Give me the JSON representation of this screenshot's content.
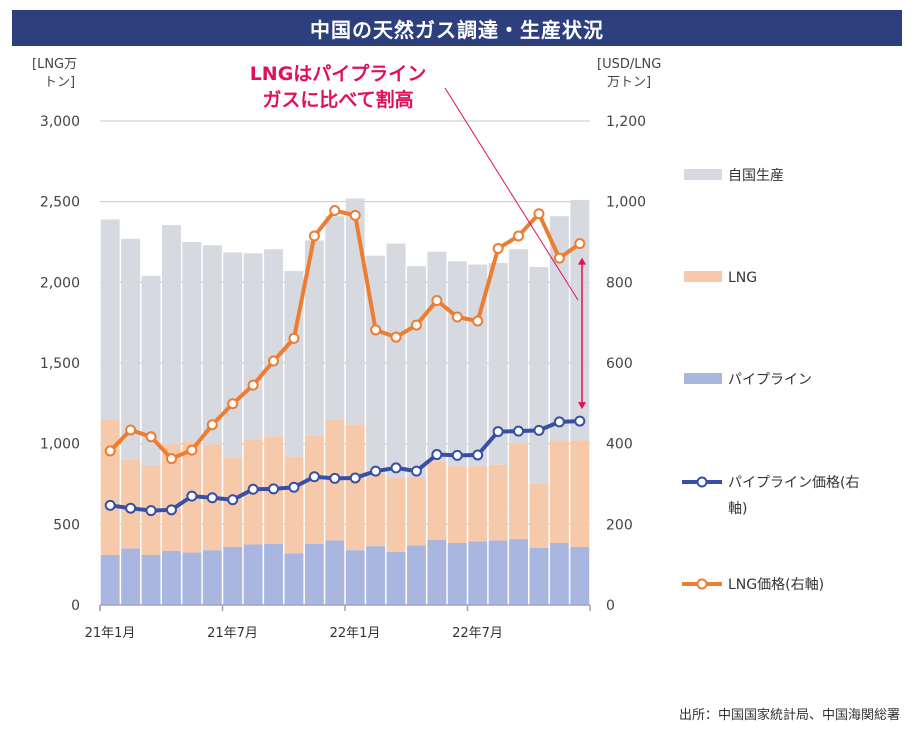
{
  "title": "中国の天然ガス調達・生産状況",
  "source": "出所：中国国家統計局、中国海関総署",
  "chart_data": {
    "type": "bar",
    "stacked": true,
    "left_axis": {
      "label_line1": "[LNG万",
      "label_line2": "トン]",
      "ylim": [
        0,
        3000
      ],
      "ticks": [
        "0",
        "500",
        "1,000",
        "1,500",
        "2,000",
        "2,500",
        "3,000"
      ],
      "tick_values": [
        0,
        500,
        1000,
        1500,
        2000,
        2500,
        3000
      ]
    },
    "right_axis": {
      "label_line1": "[USD/LNG",
      "label_line2": "万トン]",
      "ylim": [
        0,
        1200
      ],
      "ticks": [
        "0",
        "200",
        "400",
        "600",
        "800",
        "1,000",
        "1,200"
      ],
      "tick_values": [
        0,
        200,
        400,
        600,
        800,
        1000,
        1200
      ]
    },
    "x_tick_labels": [
      {
        "index": 0,
        "label": "21年1月"
      },
      {
        "index": 6,
        "label": "21年7月"
      },
      {
        "index": 12,
        "label": "22年1月"
      },
      {
        "index": 18,
        "label": "22年7月"
      }
    ],
    "series": [
      {
        "name": "パイプライン",
        "kind": "bar",
        "color": "#a9b6e0",
        "values": [
          310,
          350,
          310,
          335,
          325,
          340,
          360,
          375,
          380,
          320,
          380,
          400,
          340,
          365,
          330,
          370,
          405,
          385,
          395,
          400,
          410,
          355,
          385,
          360
        ]
      },
      {
        "name": "LNG",
        "kind": "bar",
        "color": "#f6c9aa",
        "values": [
          840,
          550,
          555,
          660,
          690,
          655,
          555,
          650,
          665,
          600,
          670,
          750,
          780,
          450,
          460,
          420,
          485,
          475,
          465,
          470,
          590,
          395,
          635,
          660
        ]
      },
      {
        "name": "自国生産",
        "kind": "bar",
        "color": "#d6d9e0",
        "values": [
          1240,
          1370,
          1175,
          1360,
          1235,
          1235,
          1270,
          1155,
          1160,
          1150,
          1210,
          1260,
          1400,
          1350,
          1450,
          1310,
          1300,
          1270,
          1250,
          1250,
          1205,
          1345,
          1390,
          1490
        ]
      },
      {
        "name": "パイプライン価格(右軸)",
        "kind": "line",
        "axis": "right",
        "color": "#3750a5",
        "values": [
          247,
          240,
          234,
          236,
          270,
          266,
          261,
          287,
          288,
          292,
          318,
          314,
          315,
          332,
          340,
          332,
          373,
          371,
          372,
          430,
          431,
          433,
          454,
          456
        ]
      },
      {
        "name": "LNG価格(右軸)",
        "kind": "line",
        "axis": "right",
        "color": "#ed7d31",
        "values": [
          382,
          434,
          417,
          363,
          384,
          447,
          499,
          545,
          605,
          661,
          915,
          978,
          966,
          682,
          664,
          694,
          755,
          714,
          704,
          884,
          915,
          970,
          860,
          896
        ]
      }
    ],
    "legend": [
      {
        "label": "自国生産",
        "kind": "bar",
        "color": "#d6d9e0"
      },
      {
        "label": "LNG",
        "kind": "bar",
        "color": "#f6c9aa"
      },
      {
        "label": "パイプライン",
        "kind": "bar",
        "color": "#a9b6e0"
      },
      {
        "label_line1": "パイプライン価格(右",
        "label_line2": "軸)",
        "kind": "line",
        "color": "#3750a5"
      },
      {
        "label": "LNG価格(右軸)",
        "kind": "line",
        "color": "#ed7d31"
      }
    ],
    "annotation": {
      "line1": "LNGはパイプライン",
      "line2": "ガスに比べて割高",
      "color": "#e0105f"
    }
  }
}
